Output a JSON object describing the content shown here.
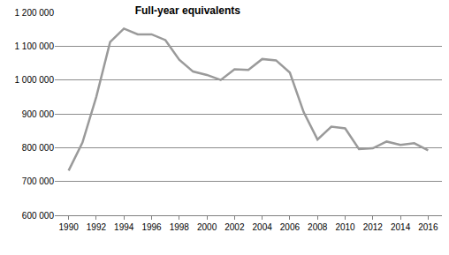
{
  "chart_data": {
    "type": "line",
    "title": "Full-year equivalents",
    "x": [
      1990,
      1991,
      1992,
      1993,
      1994,
      1995,
      1996,
      1997,
      1998,
      1999,
      2000,
      2001,
      2002,
      2003,
      2004,
      2005,
      2006,
      2007,
      2008,
      2009,
      2010,
      2011,
      2012,
      2013,
      2014,
      2015,
      2016
    ],
    "values": [
      732000,
      815000,
      950000,
      1112000,
      1152000,
      1135000,
      1135000,
      1118000,
      1060000,
      1025000,
      1015000,
      1000000,
      1032000,
      1030000,
      1062000,
      1058000,
      1022000,
      905000,
      824000,
      862000,
      857000,
      796000,
      798000,
      818000,
      808000,
      813000,
      792000
    ],
    "color": "#9a9a9a",
    "xlim": [
      1989,
      2017
    ],
    "xticks": [
      1990,
      1992,
      1994,
      1996,
      1998,
      2000,
      2002,
      2004,
      2006,
      2008,
      2010,
      2012,
      2014,
      2016
    ],
    "ylim": [
      600000,
      1200000
    ],
    "yticks": [
      {
        "value": 600000,
        "label": "600 000"
      },
      {
        "value": 700000,
        "label": "700 000"
      },
      {
        "value": 800000,
        "label": "800 000"
      },
      {
        "value": 900000,
        "label": "900 000"
      },
      {
        "value": 1000000,
        "label": "1 000 000"
      },
      {
        "value": 1100000,
        "label": "1 100 000"
      },
      {
        "value": 1200000,
        "label": "1 200 000"
      }
    ],
    "grid": true
  }
}
